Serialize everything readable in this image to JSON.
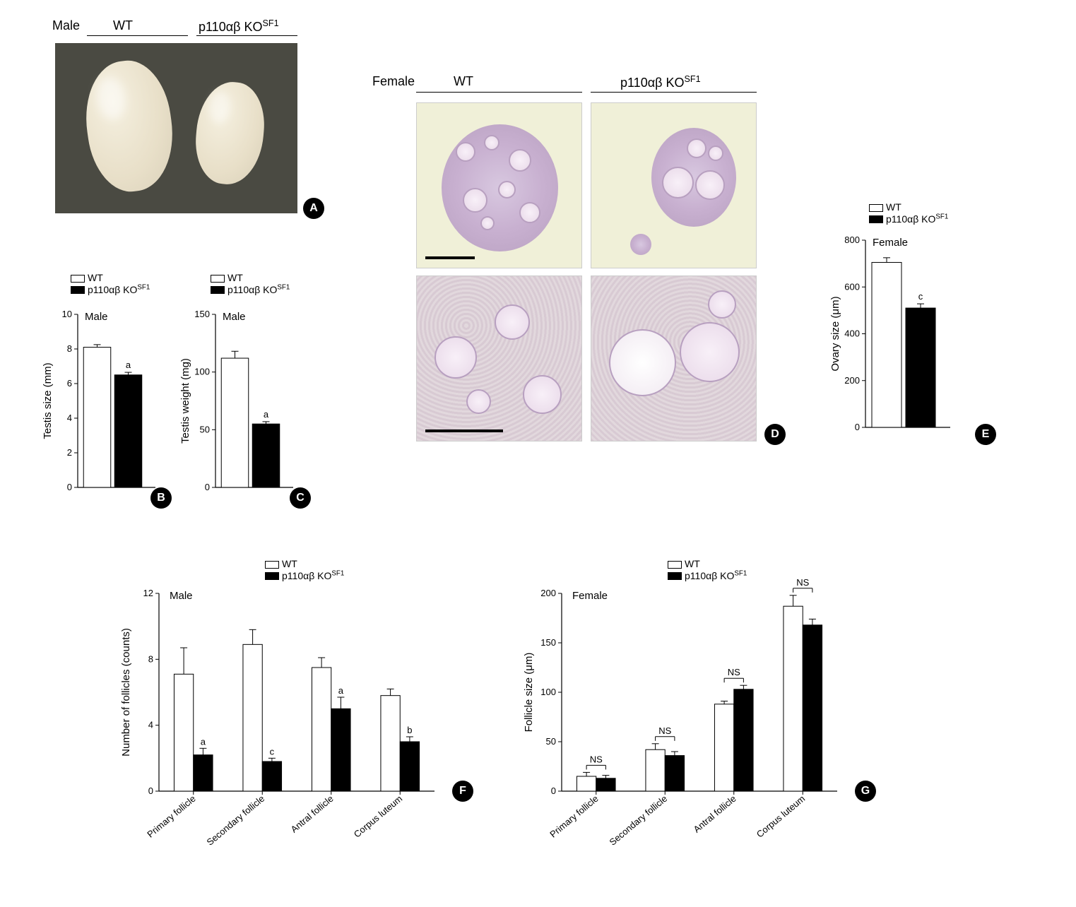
{
  "panelA": {
    "header_left": "Male",
    "group_wt": "WT",
    "group_ko_html": "p110αβ KO<sup>SF1</sup>"
  },
  "panelD": {
    "header_left": "Female",
    "group_wt": "WT",
    "group_ko_html": "p110αβ KO<sup>SF1</sup>"
  },
  "legend_wt": "WT",
  "legend_ko_html": "p110αβ KO<sup>SF1</sup>",
  "chartB": {
    "group_label": "Male",
    "ylabel": "Testis size (mm)",
    "ylim": [
      0,
      10
    ],
    "ytick_step": 2,
    "wt": {
      "value": 8.1,
      "err": 0.15
    },
    "ko": {
      "value": 6.5,
      "err": 0.15,
      "sig": "a"
    },
    "bar_width": 0.6,
    "colors": {
      "wt": "#ffffff",
      "ko": "#000000",
      "axis": "#000000"
    }
  },
  "chartC": {
    "group_label": "Male",
    "ylabel": "Testis weight (mg)",
    "ylim": [
      0,
      150
    ],
    "ytick_step": 50,
    "wt": {
      "value": 112,
      "err": 6
    },
    "ko": {
      "value": 55,
      "err": 2,
      "sig": "a"
    },
    "bar_width": 0.6
  },
  "chartE": {
    "group_label": "Female",
    "ylabel": "Ovary size (μm)",
    "ylim": [
      0,
      800
    ],
    "ytick_step": 200,
    "wt": {
      "value": 705,
      "err": 20
    },
    "ko": {
      "value": 510,
      "err": 18,
      "sig": "c"
    },
    "bar_width": 0.6
  },
  "chartF": {
    "group_label": "Male",
    "ylabel": "Number of follicles (counts)",
    "ylim": [
      0,
      12
    ],
    "ytick_step": 4,
    "categories": [
      "Primary follicle",
      "Secondary follicle",
      "Antral follicle",
      "Corpus luteum"
    ],
    "wt": [
      {
        "v": 7.1,
        "e": 1.6
      },
      {
        "v": 8.9,
        "e": 0.9
      },
      {
        "v": 7.5,
        "e": 0.6
      },
      {
        "v": 5.8,
        "e": 0.4
      }
    ],
    "ko": [
      {
        "v": 2.2,
        "e": 0.4,
        "sig": "a"
      },
      {
        "v": 1.8,
        "e": 0.2,
        "sig": "c"
      },
      {
        "v": 5.0,
        "e": 0.7,
        "sig": "a"
      },
      {
        "v": 3.0,
        "e": 0.3,
        "sig": "b"
      }
    ]
  },
  "chartG": {
    "group_label": "Female",
    "ylabel": "Follicle size (μm)",
    "ylim": [
      0,
      200
    ],
    "ytick_step": 50,
    "categories": [
      "Primary follicle",
      "Secondary follicle",
      "Antral follicle",
      "Corpus luteum"
    ],
    "wt": [
      {
        "v": 15,
        "e": 4
      },
      {
        "v": 42,
        "e": 6
      },
      {
        "v": 88,
        "e": 3
      },
      {
        "v": 187,
        "e": 11
      }
    ],
    "ko": [
      {
        "v": 13,
        "e": 3,
        "sig": "NS"
      },
      {
        "v": 36,
        "e": 4,
        "sig": "NS"
      },
      {
        "v": 103,
        "e": 4,
        "sig": "NS"
      },
      {
        "v": 168,
        "e": 6,
        "sig": "NS"
      }
    ]
  },
  "labels": {
    "A": "A",
    "B": "B",
    "C": "C",
    "D": "D",
    "E": "E",
    "F": "F",
    "G": "G"
  }
}
